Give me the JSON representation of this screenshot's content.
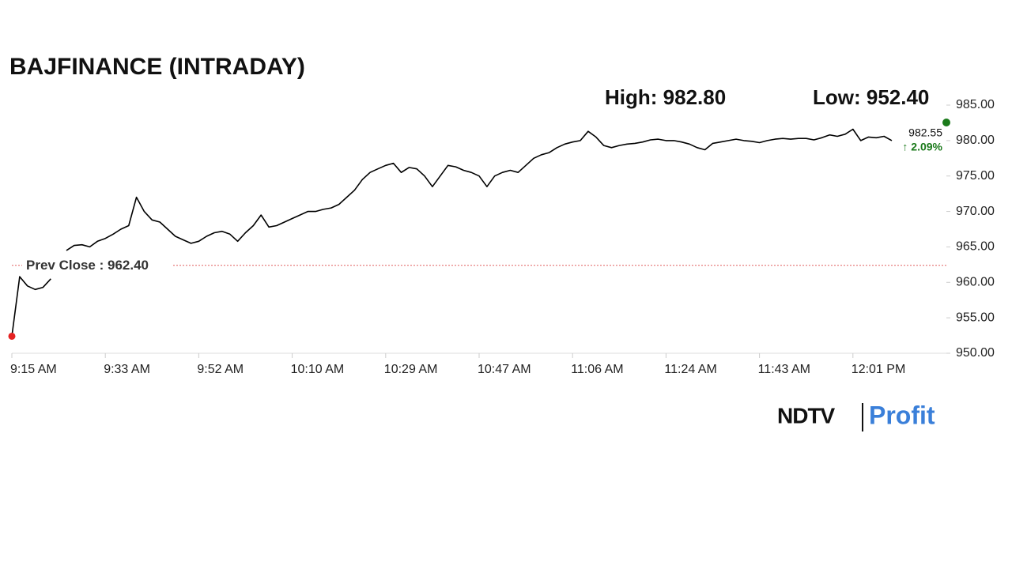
{
  "chart_data": {
    "type": "line",
    "title": "BAJFINANCE (INTRADAY)",
    "high_label": "High: 982.80",
    "low_label": "Low: 952.40",
    "categories": [
      "9:15 AM",
      null,
      null,
      null,
      null,
      null,
      null,
      null,
      null,
      null,
      null,
      null,
      "9:33 AM",
      null,
      null,
      null,
      null,
      null,
      null,
      null,
      null,
      null,
      null,
      null,
      "9:52 AM",
      null,
      null,
      null,
      null,
      null,
      null,
      null,
      null,
      null,
      null,
      null,
      "10:10 AM",
      null,
      null,
      null,
      null,
      null,
      null,
      null,
      null,
      null,
      null,
      null,
      "10:29 AM",
      null,
      null,
      null,
      null,
      null,
      null,
      null,
      null,
      null,
      null,
      null,
      "10:47 AM",
      null,
      null,
      null,
      null,
      null,
      null,
      null,
      null,
      null,
      null,
      null,
      "11:06 AM",
      null,
      null,
      null,
      null,
      null,
      null,
      null,
      null,
      null,
      null,
      null,
      "11:24 AM",
      null,
      null,
      null,
      null,
      null,
      null,
      null,
      null,
      null,
      null,
      null,
      "11:43 AM",
      null,
      null,
      null,
      null,
      null,
      null,
      null,
      null,
      null,
      null,
      null,
      "12:01 PM",
      null,
      null,
      null,
      null,
      null,
      null,
      null,
      null,
      null,
      null,
      null,
      null
    ],
    "values": [
      952.4,
      960.8,
      959.5,
      959.0,
      959.3,
      960.5,
      null,
      964.5,
      965.2,
      965.3,
      965.0,
      965.8,
      966.2,
      966.8,
      967.5,
      968.0,
      972.0,
      970.0,
      968.8,
      968.5,
      967.5,
      966.5,
      966.0,
      965.5,
      965.8,
      966.5,
      967.0,
      967.2,
      966.8,
      965.8,
      967.0,
      968.0,
      969.5,
      967.8,
      968.0,
      968.5,
      969.0,
      969.5,
      970.0,
      970.0,
      970.3,
      970.5,
      971.0,
      972.0,
      973.0,
      974.5,
      975.5,
      976.0,
      976.5,
      976.8,
      975.5,
      976.2,
      976.0,
      975.0,
      973.5,
      975.0,
      976.5,
      976.3,
      975.8,
      975.5,
      975.0,
      973.5,
      975.0,
      975.5,
      975.8,
      975.5,
      976.5,
      977.5,
      978.0,
      978.3,
      979.0,
      979.5,
      979.8,
      980.0,
      981.3,
      980.5,
      979.3,
      979.0,
      979.3,
      979.5,
      979.6,
      979.8,
      980.1,
      980.2,
      980.0,
      980.0,
      979.8,
      979.5,
      979.0,
      978.7,
      979.6,
      979.8,
      980.0,
      980.2,
      980.0,
      979.9,
      979.7,
      980.0,
      980.2,
      980.3,
      980.2,
      980.3,
      980.3,
      980.1,
      980.4,
      980.8,
      980.6,
      980.9,
      981.6,
      980.0,
      980.5,
      980.4,
      980.6,
      980.0,
      null,
      null,
      null,
      null,
      null,
      null,
      null
    ],
    "color": "#000000",
    "low_marker_color": "#e52222",
    "last": {
      "index": 120,
      "value": 982.55,
      "label": "982.55",
      "change_label": "↑ 2.09%",
      "color": "#1b7a1b"
    },
    "reference_line": {
      "label": "Prev Close : 962.40",
      "value": 962.4,
      "color": "#e06060"
    },
    "ylim": [
      950,
      985
    ],
    "yticks": [
      {
        "value": 950,
        "label": "950.00"
      },
      {
        "value": 955,
        "label": "955.00"
      },
      {
        "value": 960,
        "label": "960.00"
      },
      {
        "value": 965,
        "label": "965.00"
      },
      {
        "value": 970,
        "label": "970.00"
      },
      {
        "value": 975,
        "label": "975.00"
      },
      {
        "value": 980,
        "label": "980.00"
      },
      {
        "value": 985,
        "label": "985.00"
      }
    ],
    "grid": false,
    "logo": {
      "brand": "NDTV",
      "product": "Profit"
    }
  }
}
